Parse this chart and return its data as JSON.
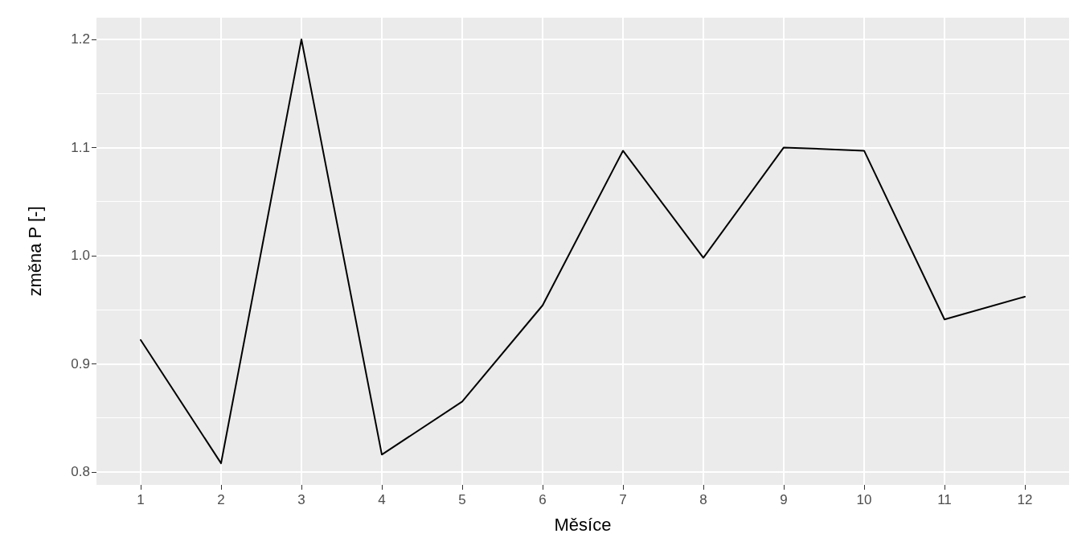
{
  "chart_data": {
    "type": "line",
    "xlabel": "Měsíce",
    "ylabel": "změna P [-]",
    "x": [
      1,
      2,
      3,
      4,
      5,
      6,
      7,
      8,
      9,
      10,
      11,
      12
    ],
    "series": [
      {
        "color": "#000000",
        "values": [
          0.922,
          0.808,
          1.2,
          0.816,
          0.865,
          0.954,
          1.097,
          0.998,
          1.1,
          1.097,
          0.941,
          0.962
        ]
      }
    ],
    "xlim": [
      0.45,
      12.55
    ],
    "xticks": [
      1,
      2,
      3,
      4,
      5,
      6,
      7,
      8,
      9,
      10,
      11,
      12
    ],
    "ylim": [
      0.788,
      1.22
    ],
    "yticks": [
      {
        "value": 0.8,
        "label": "0.8"
      },
      {
        "value": 0.9,
        "label": "0.9"
      },
      {
        "value": 1.0,
        "label": "1.0"
      },
      {
        "value": 1.1,
        "label": "1.1"
      },
      {
        "value": 1.2,
        "label": "1.2"
      }
    ],
    "grid": true,
    "line_style": "solid"
  }
}
